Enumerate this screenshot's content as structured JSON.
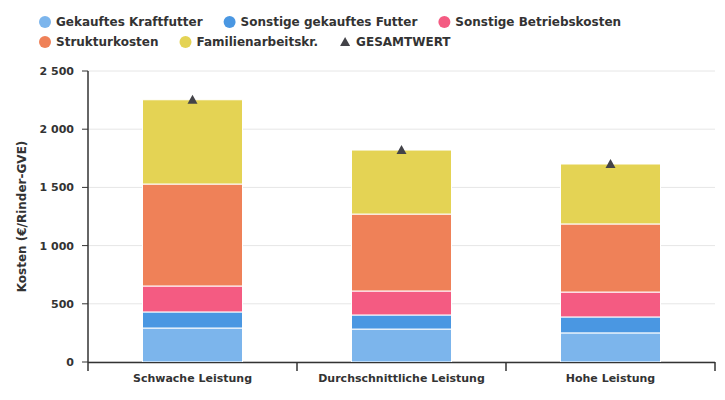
{
  "chart_data": {
    "type": "bar",
    "stacked": true,
    "legend": "top",
    "grid": true,
    "y_label": "Kosten (€/Rinder-GVE)",
    "categories": [
      "Schwache Leistung",
      "Durchschnittliche Leistung",
      "Hohe Leistung"
    ],
    "ylim": [
      0,
      2500
    ],
    "yticks": [
      0,
      500,
      {
        "value": 1000,
        "label": "1 000"
      },
      {
        "value": 1500,
        "label": "1 500"
      },
      {
        "value": 2000,
        "label": "2 000"
      },
      {
        "value": 2500,
        "label": "2 500"
      }
    ],
    "series": [
      {
        "name": "Gekauftes Kraftfutter",
        "color": "#7cb5ec",
        "values": [
          292,
          283,
          250
        ]
      },
      {
        "name": "Sonstige gekauftes Futter",
        "color": "#4a97e2",
        "values": [
          138,
          121,
          137
        ]
      },
      {
        "name": "Sonstige Betriebskosten",
        "color": "#f45b82",
        "values": [
          223,
          206,
          214
        ]
      },
      {
        "name": "Strukturkosten",
        "color": "#ef8158",
        "values": [
          876,
          661,
          585
        ]
      },
      {
        "name": "Familienarbeitskr.",
        "color": "#e4d354",
        "values": [
          724,
          550,
          515
        ]
      },
      {
        "name": "GESAMTWERT",
        "color": "#434348",
        "type": "scatter",
        "marker": "triangle",
        "values": [
          2253,
          1821,
          1701
        ]
      }
    ]
  }
}
